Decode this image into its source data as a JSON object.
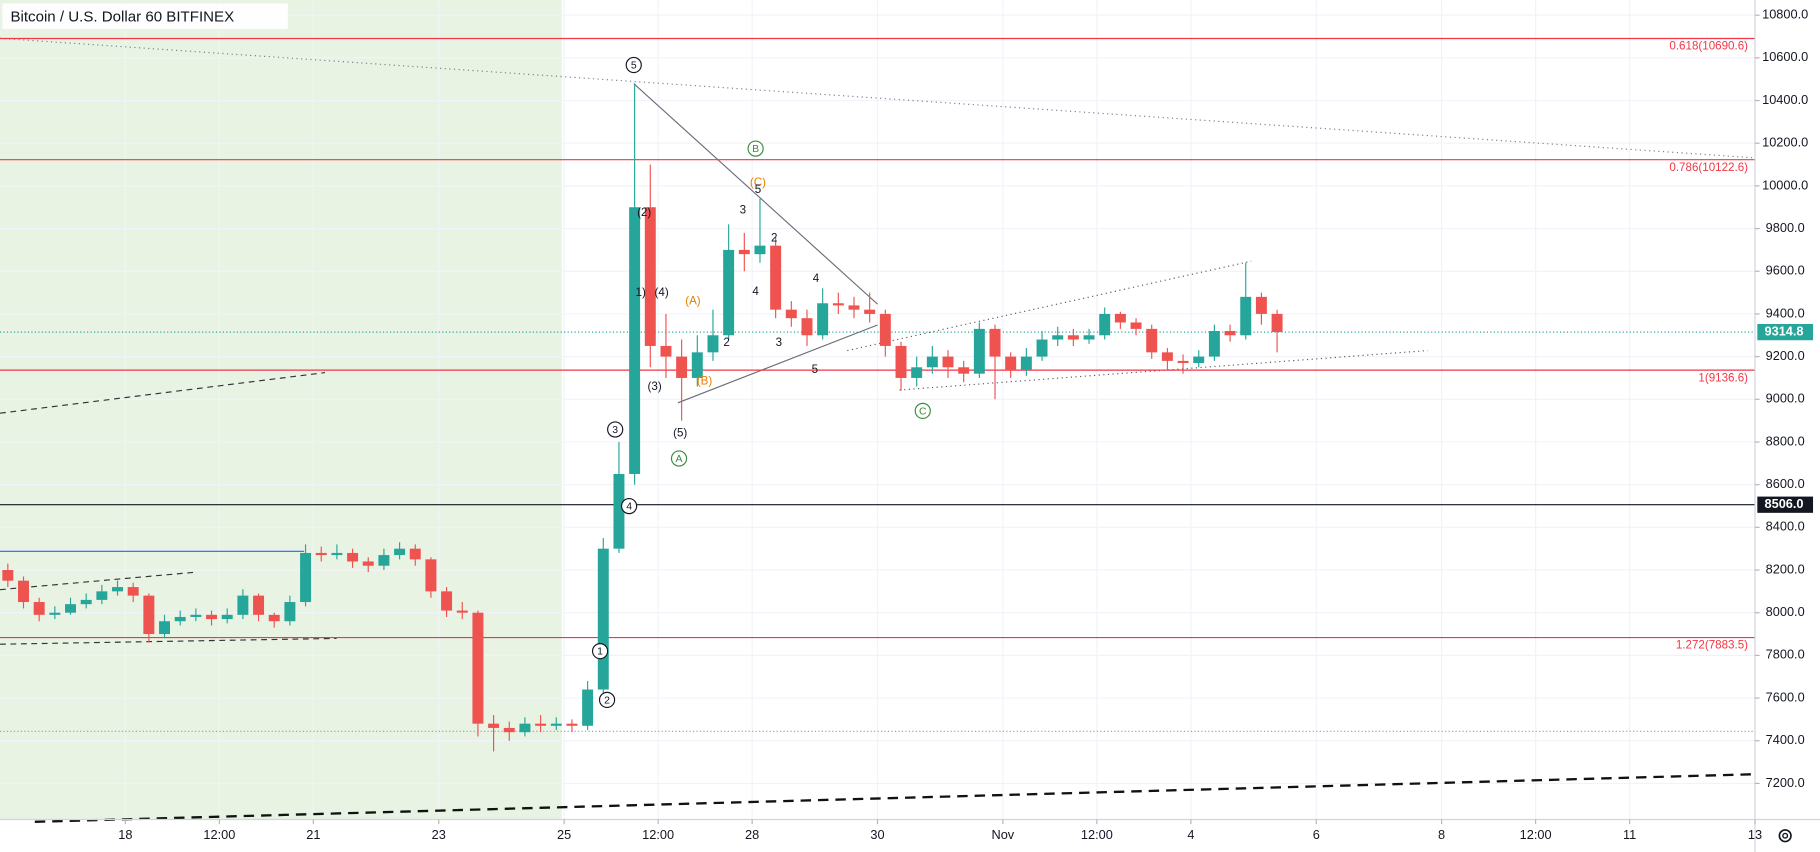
{
  "chart_data": {
    "type": "candlestick",
    "title": "Bitcoin / U.S. Dollar  60  BITFINEX",
    "up_color": "#26a69a",
    "down_color": "#ef5350",
    "grid": true,
    "xlim": [
      0,
      672
    ],
    "ylim": [
      7031,
      10871
    ],
    "xticks": [
      {
        "value": 48,
        "label": "18"
      },
      {
        "value": 84,
        "label": "12:00"
      },
      {
        "value": 120,
        "label": "21"
      },
      {
        "value": 168,
        "label": "23"
      },
      {
        "value": 216,
        "label": "25"
      },
      {
        "value": 252,
        "label": "12:00"
      },
      {
        "value": 288,
        "label": "28"
      },
      {
        "value": 336,
        "label": "30"
      },
      {
        "value": 384,
        "label": "Nov"
      },
      {
        "value": 420,
        "label": "12:00"
      },
      {
        "value": 456,
        "label": "4"
      },
      {
        "value": 504,
        "label": "6"
      },
      {
        "value": 552,
        "label": "8"
      },
      {
        "value": 588,
        "label": "12:00"
      },
      {
        "value": 624,
        "label": "11"
      },
      {
        "value": 672,
        "label": "13"
      }
    ],
    "yticks": [
      {
        "value": 7200,
        "label": "7200.0"
      },
      {
        "value": 7400,
        "label": "7400.0"
      },
      {
        "value": 7600,
        "label": "7600.0"
      },
      {
        "value": 7800,
        "label": "7800.0"
      },
      {
        "value": 8000,
        "label": "8000.0"
      },
      {
        "value": 8200,
        "label": "8200.0"
      },
      {
        "value": 8400,
        "label": "8400.0"
      },
      {
        "value": 8600,
        "label": "8600.0"
      },
      {
        "value": 8800,
        "label": "8800.0"
      },
      {
        "value": 9000,
        "label": "9000.0"
      },
      {
        "value": 9200,
        "label": "9200.0"
      },
      {
        "value": 9400,
        "label": "9400.0"
      },
      {
        "value": 9600,
        "label": "9600.0"
      },
      {
        "value": 9800,
        "label": "9800.0"
      },
      {
        "value": 10000,
        "label": "10000.0"
      },
      {
        "value": 10200,
        "label": "10200.0"
      },
      {
        "value": 10400,
        "label": "10400.0"
      },
      {
        "value": 10600,
        "label": "10600.0"
      },
      {
        "value": 10800,
        "label": "10800.0"
      }
    ],
    "x": [
      0,
      6,
      12,
      18,
      24,
      30,
      36,
      42,
      48,
      54,
      60,
      66,
      72,
      78,
      84,
      90,
      96,
      102,
      108,
      114,
      120,
      126,
      132,
      138,
      144,
      150,
      156,
      162,
      168,
      174,
      180,
      186,
      192,
      198,
      204,
      210,
      216,
      222,
      228,
      234,
      240,
      246,
      252,
      258,
      264,
      270,
      276,
      282,
      288,
      294,
      300,
      306,
      312,
      318,
      324,
      330,
      336,
      342,
      348,
      354,
      360,
      366,
      372,
      378,
      384,
      390,
      396,
      402,
      408,
      414,
      420,
      426,
      432,
      438,
      444,
      450,
      456,
      462,
      468,
      474,
      480,
      486
    ],
    "open": [
      8200,
      8150,
      8050,
      7990,
      8000,
      8040,
      8060,
      8100,
      8120,
      8080,
      7900,
      7960,
      7980,
      7990,
      7970,
      7990,
      8080,
      7990,
      7960,
      8050,
      8280,
      8270,
      8280,
      8240,
      8220,
      8270,
      8300,
      8250,
      8100,
      8010,
      8000,
      7480,
      7460,
      7440,
      7480,
      7470,
      7480,
      7470,
      7640,
      8300,
      8650,
      9900,
      9250,
      9200,
      9100,
      9220,
      9300,
      9700,
      9680,
      9720,
      9420,
      9380,
      9300,
      9450,
      9440,
      9420,
      9400,
      9250,
      9100,
      9150,
      9200,
      9150,
      9120,
      9330,
      9200,
      9140,
      9200,
      9280,
      9300,
      9280,
      9300,
      9400,
      9360,
      9330,
      9220,
      9180,
      9170,
      9200,
      9320,
      9300,
      9480,
      9400
    ],
    "high": [
      8230,
      8170,
      8070,
      8030,
      8070,
      8090,
      8130,
      8150,
      8140,
      8090,
      7990,
      8010,
      8020,
      8010,
      8020,
      8110,
      8090,
      8000,
      8080,
      8320,
      8310,
      8320,
      8300,
      8260,
      8300,
      8330,
      8320,
      8260,
      8120,
      8050,
      8010,
      7520,
      7490,
      7510,
      7520,
      7510,
      7500,
      7680,
      8350,
      8800,
      10480,
      10100,
      9400,
      9280,
      9300,
      9420,
      9820,
      9780,
      9940,
      9760,
      9460,
      9420,
      9520,
      9500,
      9480,
      9500,
      9420,
      9270,
      9200,
      9250,
      9230,
      9180,
      9360,
      9350,
      9220,
      9240,
      9320,
      9340,
      9330,
      9330,
      9430,
      9410,
      9380,
      9350,
      9240,
      9210,
      9230,
      9350,
      9350,
      9640,
      9500,
      9420
    ],
    "low": [
      8120,
      8020,
      7960,
      7970,
      7990,
      8020,
      8040,
      8080,
      8050,
      7860,
      7880,
      7940,
      7960,
      7940,
      7950,
      7970,
      7960,
      7930,
      7940,
      8030,
      8240,
      8250,
      8210,
      8190,
      8200,
      8250,
      8220,
      8070,
      7980,
      7970,
      7420,
      7350,
      7400,
      7420,
      7440,
      7450,
      7440,
      7450,
      7620,
      8280,
      8600,
      9150,
      9100,
      8900,
      9060,
      9180,
      9280,
      9600,
      9640,
      9380,
      9340,
      9250,
      9280,
      9400,
      9380,
      9360,
      9200,
      9040,
      9060,
      9120,
      9100,
      9080,
      9100,
      9000,
      9100,
      9110,
      9180,
      9250,
      9250,
      9260,
      9280,
      9330,
      9300,
      9190,
      9140,
      9120,
      9150,
      9180,
      9270,
      9280,
      9350,
      9220
    ],
    "close": [
      8150,
      8050,
      7990,
      8000,
      8040,
      8060,
      8100,
      8120,
      8080,
      7900,
      7960,
      7980,
      7990,
      7970,
      7990,
      8080,
      7990,
      7960,
      8050,
      8280,
      8270,
      8280,
      8240,
      8220,
      8270,
      8300,
      8250,
      8100,
      8010,
      8000,
      7480,
      7460,
      7440,
      7480,
      7470,
      7480,
      7470,
      7640,
      8300,
      8650,
      9900,
      9250,
      9200,
      9100,
      9220,
      9300,
      9700,
      9680,
      9720,
      9420,
      9380,
      9300,
      9450,
      9440,
      9420,
      9400,
      9250,
      9100,
      9150,
      9200,
      9150,
      9120,
      9330,
      9200,
      9140,
      9200,
      9280,
      9300,
      9280,
      9300,
      9400,
      9360,
      9330,
      9220,
      9180,
      9170,
      9200,
      9320,
      9300,
      9480,
      9400,
      9315
    ],
    "levels": [
      {
        "value": 10690.6,
        "label": "0.618(10690.6)"
      },
      {
        "value": 10122.6,
        "label": "0.786(10122.6)"
      },
      {
        "value": 9136.6,
        "label": "1(9136.6)"
      },
      {
        "value": 7883.5,
        "label": "1.272(7883.5)"
      }
    ],
    "level_color": "#f23645",
    "price_tags": [
      {
        "value": 9314.8,
        "color": "#26a69a"
      },
      {
        "value": 8506.0,
        "label": "8506.0",
        "color": "#131722"
      }
    ],
    "annotations": [
      "5",
      "3",
      "4",
      "1",
      "2",
      "B",
      "A",
      "C",
      "(A)",
      "(B)",
      "(C)",
      "(2)",
      "(4)",
      "1)",
      "(3)",
      "(5)",
      "3",
      "5",
      "2",
      "4",
      "4",
      "2",
      "3",
      "5"
    ]
  }
}
